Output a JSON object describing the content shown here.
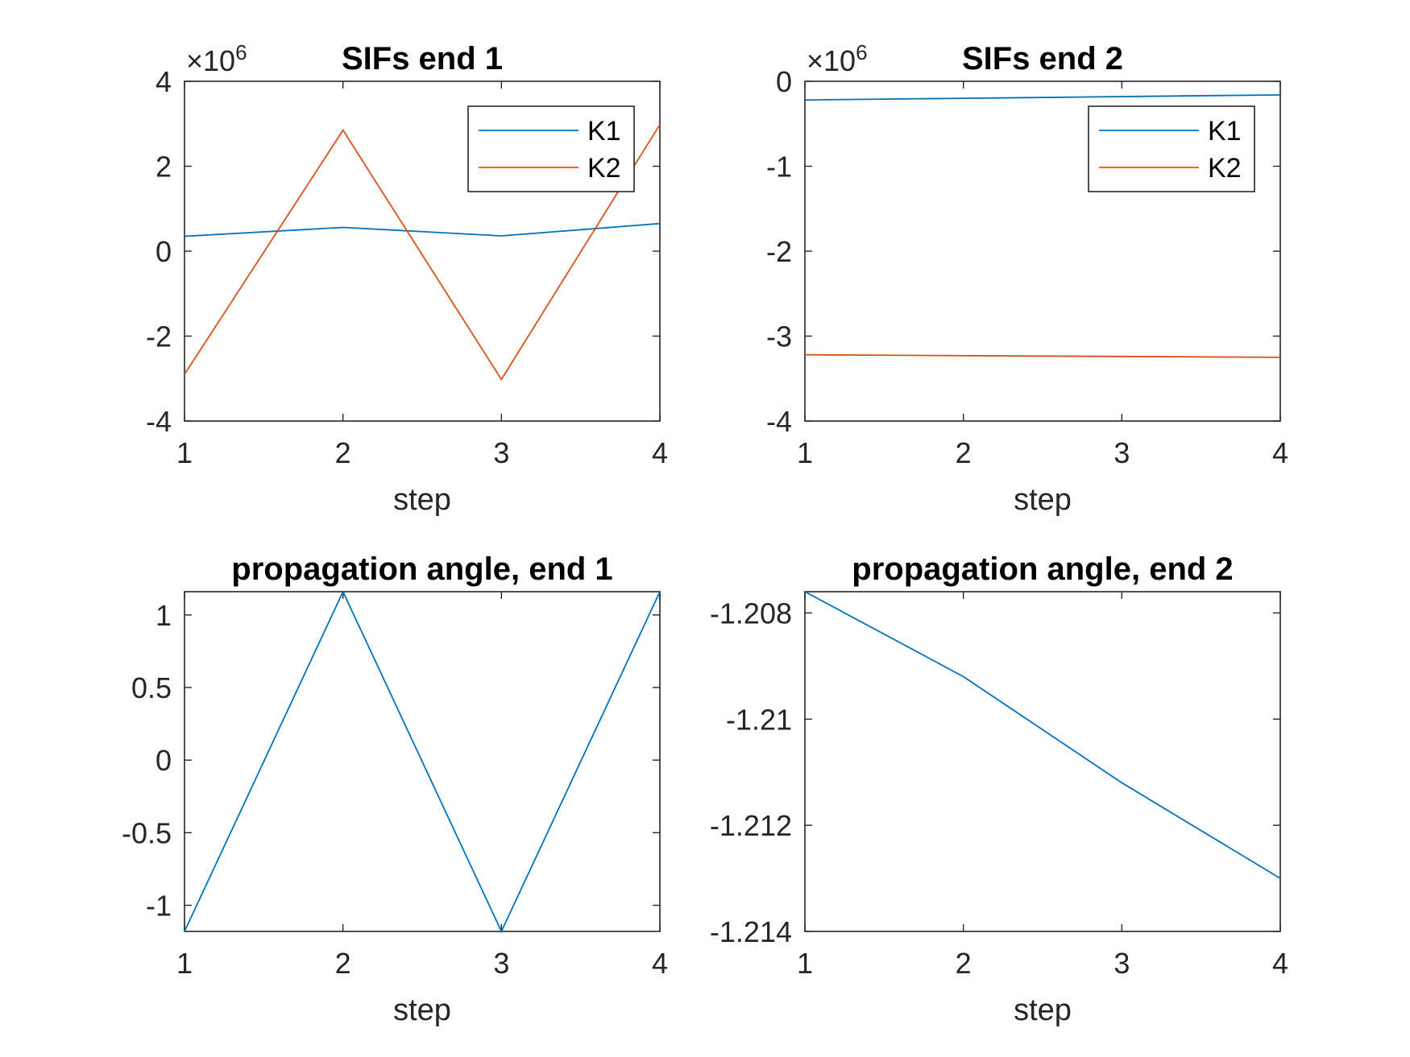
{
  "chart_data": [
    {
      "type": "line",
      "title": "SIFs end 1",
      "xlabel": "step",
      "ylabel": "",
      "exponent_label": "×10",
      "exponent_power": "6",
      "xlim": [
        1,
        4
      ],
      "ylim": [
        -4,
        4
      ],
      "xticks": [
        1,
        2,
        3,
        4
      ],
      "xtick_labels": [
        "1",
        "2",
        "3",
        "4"
      ],
      "yticks": [
        -4,
        -2,
        0,
        2,
        4
      ],
      "ytick_labels": [
        "-4",
        "-2",
        "0",
        "2",
        "4"
      ],
      "x": [
        1,
        2,
        3,
        4
      ],
      "series": [
        {
          "name": "K1",
          "color": "#0072BD",
          "values": [
            0.35,
            0.56,
            0.36,
            0.65
          ]
        },
        {
          "name": "K2",
          "color": "#D95319",
          "values": [
            -2.9,
            2.85,
            -3.02,
            2.98
          ]
        }
      ],
      "legend": "top-right",
      "grid": false
    },
    {
      "type": "line",
      "title": "SIFs end 2",
      "xlabel": "step",
      "ylabel": "",
      "exponent_label": "×10",
      "exponent_power": "6",
      "xlim": [
        1,
        4
      ],
      "ylim": [
        -4,
        0
      ],
      "xticks": [
        1,
        2,
        3,
        4
      ],
      "xtick_labels": [
        "1",
        "2",
        "3",
        "4"
      ],
      "yticks": [
        -4,
        -3,
        -2,
        -1,
        0
      ],
      "ytick_labels": [
        "-4",
        "-3",
        "-2",
        "-1",
        "0"
      ],
      "x": [
        1,
        2,
        3,
        4
      ],
      "series": [
        {
          "name": "K1",
          "color": "#0072BD",
          "values": [
            -0.22,
            -0.2,
            -0.18,
            -0.16
          ]
        },
        {
          "name": "K2",
          "color": "#D95319",
          "values": [
            -3.22,
            -3.23,
            -3.24,
            -3.25
          ]
        }
      ],
      "legend": "top-right",
      "grid": false
    },
    {
      "type": "line",
      "title": "propagation angle, end 1",
      "xlabel": "step",
      "ylabel": "",
      "xlim": [
        1,
        4
      ],
      "ylim": [
        -1.18,
        1.16
      ],
      "xticks": [
        1,
        2,
        3,
        4
      ],
      "xtick_labels": [
        "1",
        "2",
        "3",
        "4"
      ],
      "yticks": [
        -1,
        -0.5,
        0,
        0.5,
        1
      ],
      "ytick_labels": [
        "-1",
        "-0.5",
        "0",
        "0.5",
        "1"
      ],
      "x": [
        1,
        2,
        3,
        4
      ],
      "series": [
        {
          "color": "#0072BD",
          "values": [
            -1.18,
            1.16,
            -1.18,
            1.16
          ]
        }
      ],
      "grid": false
    },
    {
      "type": "line",
      "title": "propagation angle, end 2",
      "xlabel": "step",
      "ylabel": "",
      "xlim": [
        1,
        4
      ],
      "ylim": [
        -1.214,
        -1.2076
      ],
      "xticks": [
        1,
        2,
        3,
        4
      ],
      "xtick_labels": [
        "1",
        "2",
        "3",
        "4"
      ],
      "yticks": [
        -1.214,
        -1.212,
        -1.21,
        -1.208
      ],
      "ytick_labels": [
        "-1.214",
        "-1.212",
        "-1.21",
        "-1.208"
      ],
      "x": [
        1,
        2,
        3,
        4
      ],
      "series": [
        {
          "color": "#0072BD",
          "values": [
            -1.2076,
            -1.2092,
            -1.2112,
            -1.213
          ]
        }
      ],
      "grid": false
    }
  ]
}
